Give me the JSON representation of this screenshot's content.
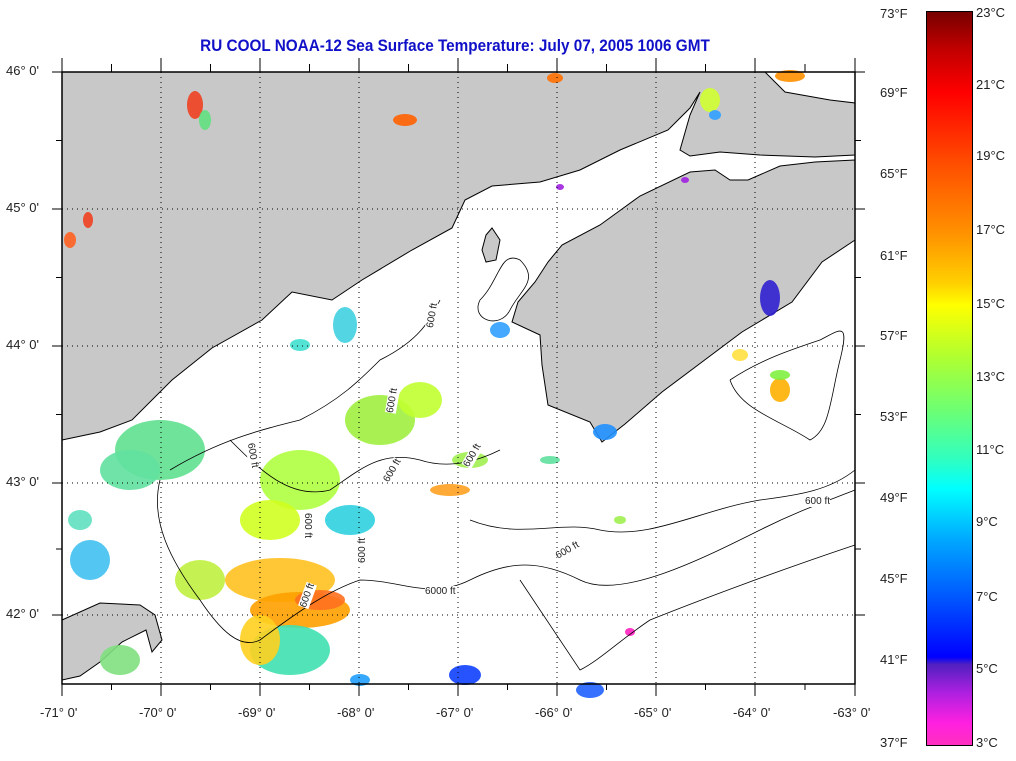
{
  "title": "RU COOL  NOAA-12  Sea Surface Temperature:  July 07, 2005 1006 GMT",
  "map": {
    "lat_labels": [
      "46° 0'",
      "45° 0'",
      "44° 0'",
      "43° 0'",
      "42° 0'"
    ],
    "lon_labels": [
      "-71° 0'",
      "-70° 0'",
      "-69° 0'",
      "-68° 0'",
      "-67° 0'",
      "-66° 0'",
      "-65° 0'",
      "-64° 0'",
      "-63° 0'"
    ],
    "contour_labels": [
      "600 ft",
      "600 ft",
      "600 ft",
      "600 ft",
      "600 ft",
      "600 ft",
      "600 ft",
      "600 ft",
      "600 ft",
      "600 ft",
      "6000 ft"
    ],
    "colors": {
      "land": "#c8c8c8",
      "ocean": "#ffffff",
      "title": "#1010c8"
    }
  },
  "colorbar": {
    "fahrenheit": [
      "73°F",
      "69°F",
      "65°F",
      "61°F",
      "57°F",
      "53°F",
      "49°F",
      "45°F",
      "41°F",
      "37°F"
    ],
    "celsius": [
      "23°C",
      "21°C",
      "19°C",
      "17°C",
      "15°C",
      "13°C",
      "11°C",
      "9°C",
      "7°C",
      "5°C",
      "3°C"
    ]
  }
}
